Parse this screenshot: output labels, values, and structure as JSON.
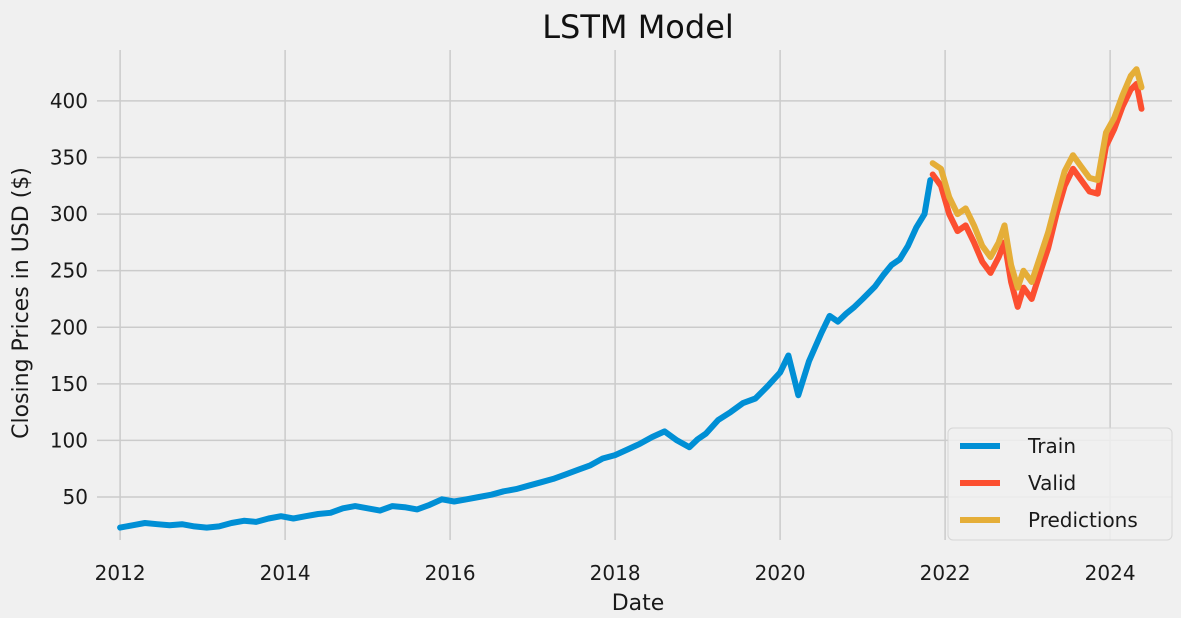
{
  "chart_data": {
    "type": "line",
    "title": "LSTM Model",
    "xlabel": "Date",
    "ylabel": "Closing Prices in USD ($)",
    "xlim": [
      2011.72,
      2024.75
    ],
    "ylim": [
      12,
      445
    ],
    "x_ticks": [
      2012,
      2014,
      2016,
      2018,
      2020,
      2022,
      2024
    ],
    "y_ticks": [
      50,
      100,
      150,
      200,
      250,
      300,
      350,
      400
    ],
    "grid": true,
    "legend_position": "lower-right",
    "series": [
      {
        "name": "Train",
        "color": "#008fd5",
        "x": [
          2012.0,
          2012.15,
          2012.3,
          2012.45,
          2012.6,
          2012.75,
          2012.9,
          2013.05,
          2013.2,
          2013.35,
          2013.5,
          2013.65,
          2013.8,
          2013.95,
          2014.1,
          2014.25,
          2014.4,
          2014.55,
          2014.7,
          2014.85,
          2015.0,
          2015.15,
          2015.3,
          2015.45,
          2015.6,
          2015.75,
          2015.9,
          2016.05,
          2016.2,
          2016.35,
          2016.5,
          2016.65,
          2016.8,
          2016.95,
          2017.1,
          2017.25,
          2017.4,
          2017.55,
          2017.7,
          2017.85,
          2018.0,
          2018.15,
          2018.3,
          2018.45,
          2018.6,
          2018.75,
          2018.9,
          2019.0,
          2019.1,
          2019.25,
          2019.4,
          2019.55,
          2019.7,
          2019.85,
          2020.0,
          2020.1,
          2020.17,
          2020.22,
          2020.35,
          2020.5,
          2020.6,
          2020.7,
          2020.8,
          2020.9,
          2021.0,
          2021.15,
          2021.25,
          2021.35,
          2021.45,
          2021.55,
          2021.65,
          2021.75,
          2021.82
        ],
        "values": [
          23,
          25,
          27,
          26,
          25,
          26,
          24,
          23,
          24,
          27,
          29,
          28,
          31,
          33,
          31,
          33,
          35,
          36,
          40,
          42,
          40,
          38,
          42,
          41,
          39,
          43,
          48,
          46,
          48,
          50,
          52,
          55,
          57,
          60,
          63,
          66,
          70,
          74,
          78,
          84,
          87,
          92,
          97,
          103,
          108,
          100,
          94,
          101,
          106,
          118,
          125,
          133,
          137,
          148,
          160,
          175,
          155,
          140,
          170,
          195,
          210,
          205,
          212,
          218,
          225,
          236,
          246,
          255,
          260,
          272,
          288,
          300,
          330
        ]
      },
      {
        "name": "Valid",
        "color": "#fc4f30",
        "x": [
          2021.85,
          2021.95,
          2022.05,
          2022.15,
          2022.25,
          2022.35,
          2022.45,
          2022.55,
          2022.65,
          2022.72,
          2022.8,
          2022.88,
          2022.95,
          2023.05,
          2023.15,
          2023.25,
          2023.35,
          2023.45,
          2023.55,
          2023.65,
          2023.75,
          2023.85,
          2023.95,
          2024.05,
          2024.15,
          2024.25,
          2024.32,
          2024.38
        ],
        "values": [
          335,
          325,
          300,
          285,
          290,
          275,
          258,
          248,
          262,
          275,
          240,
          218,
          235,
          225,
          248,
          270,
          300,
          325,
          340,
          330,
          320,
          318,
          360,
          375,
          395,
          410,
          415,
          393
        ]
      },
      {
        "name": "Predictions",
        "color": "#e5ae38",
        "x": [
          2021.85,
          2021.95,
          2022.05,
          2022.15,
          2022.25,
          2022.35,
          2022.45,
          2022.55,
          2022.65,
          2022.72,
          2022.8,
          2022.88,
          2022.95,
          2023.05,
          2023.15,
          2023.25,
          2023.35,
          2023.45,
          2023.55,
          2023.65,
          2023.75,
          2023.85,
          2023.95,
          2024.05,
          2024.15,
          2024.25,
          2024.32,
          2024.38
        ],
        "values": [
          345,
          340,
          315,
          300,
          305,
          290,
          272,
          262,
          275,
          290,
          255,
          235,
          250,
          240,
          262,
          284,
          312,
          338,
          352,
          342,
          332,
          330,
          372,
          385,
          405,
          422,
          428,
          412
        ]
      }
    ]
  }
}
